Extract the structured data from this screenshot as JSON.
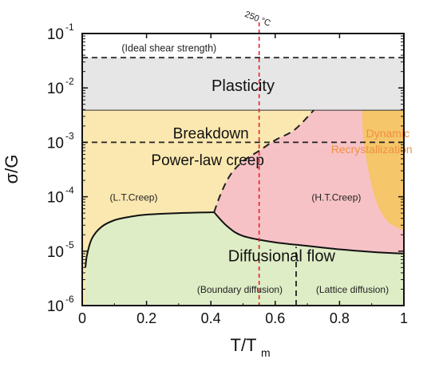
{
  "chart_data": {
    "type": "deformation-mechanism-map",
    "xlabel": "T/T",
    "xlabel_sub": "m",
    "ylabel": "σ/G",
    "xlim": [
      0,
      1
    ],
    "ylim_log10": [
      -6,
      -1
    ],
    "x_ticks": [
      {
        "v": 0,
        "label": "0"
      },
      {
        "v": 0.2,
        "label": "0.2"
      },
      {
        "v": 0.4,
        "label": "0.4"
      },
      {
        "v": 0.6,
        "label": "0.6"
      },
      {
        "v": 0.8,
        "label": "0.8"
      },
      {
        "v": 1,
        "label": "1"
      }
    ],
    "y_ticks": [
      {
        "e": -1,
        "label": "10",
        "exp": "-1"
      },
      {
        "e": -2,
        "label": "10",
        "exp": "-2"
      },
      {
        "e": -3,
        "label": "10",
        "exp": "-3"
      },
      {
        "e": -4,
        "label": "10",
        "exp": "-4"
      },
      {
        "e": -5,
        "label": "10",
        "exp": "-5"
      },
      {
        "e": -6,
        "label": "10",
        "exp": "-6"
      }
    ],
    "reference_line": {
      "x": 0.55,
      "label": "250 °C",
      "color": "#e8202a"
    },
    "ideal_shear_strength": {
      "y": 0.036,
      "label": "(Ideal shear strength)"
    },
    "breakdown_line_y": 0.001,
    "colors": {
      "plasticity": "#e6e6e6",
      "power_law": "#fbe8b0",
      "ht_creep": "#f7c2c6",
      "lattice": "#fdf8df",
      "diffusional": "#deedc6",
      "recrystallization": "#f5c66a",
      "recrystallization_label": "#f09040"
    },
    "regions": {
      "plasticity": {
        "label": "Plasticity",
        "x": 0.5,
        "y": 0.0105
      },
      "breakdown": {
        "label": "Breakdown",
        "x": 0.4,
        "y": 0.0014
      },
      "power_law": {
        "label": "Power-law creep",
        "x": 0.39,
        "y": 0.00045
      },
      "lt_creep": {
        "label": "(L.T.Creep)",
        "x": 0.16,
        "y": 9.5e-05
      },
      "ht_creep": {
        "label": "(H.T.Creep)",
        "x": 0.79,
        "y": 9.5e-05
      },
      "diffusional": {
        "label": "Diffusional flow",
        "x": 0.62,
        "y": 7.8e-06
      },
      "boundary": {
        "label": "(Boundary diffusion)",
        "x": 0.49,
        "y": 1.9e-06
      },
      "lattice": {
        "label": "(Lattice diffusion)",
        "x": 0.84,
        "y": 1.9e-06
      },
      "recrystallization": {
        "label_line1": "Dynamic",
        "label_line2": "Recrystallization",
        "x": 0.93,
        "y1": 0.0014,
        "y2": 0.00072
      }
    },
    "boundaries": {
      "plasticity_bottom": 0.0039,
      "lower_curve": [
        [
          0.01,
          5e-06
        ],
        [
          0.015,
          8.5e-06
        ],
        [
          0.03,
          1.7e-05
        ],
        [
          0.06,
          2.8e-05
        ],
        [
          0.1,
          3.7e-05
        ],
        [
          0.15,
          4.3e-05
        ],
        [
          0.2,
          4.7e-05
        ],
        [
          0.3,
          5e-05
        ],
        [
          0.41,
          5.2e-05
        ]
      ],
      "ht_diffusional_curve": [
        [
          0.41,
          5.2e-05
        ],
        [
          0.45,
          2.9e-05
        ],
        [
          0.5,
          1.9e-05
        ],
        [
          0.6,
          1.45e-05
        ],
        [
          0.7,
          1.25e-05
        ],
        [
          0.8,
          1.08e-05
        ],
        [
          0.9,
          9.7e-06
        ],
        [
          1.0,
          9e-06
        ]
      ],
      "ht_left_curve": [
        [
          0.41,
          5.2e-05
        ],
        [
          0.43,
          0.00011
        ],
        [
          0.46,
          0.00025
        ],
        [
          0.5,
          0.00045
        ],
        [
          0.55,
          0.0007
        ],
        [
          0.6,
          0.0011
        ],
        [
          0.66,
          0.0017
        ],
        [
          0.72,
          0.0039
        ]
      ],
      "diffusion_divider_x": 0.665,
      "recrystallization_outline": [
        [
          0.87,
          0.0039
        ],
        [
          0.874,
          0.0012
        ],
        [
          0.89,
          0.0003
        ],
        [
          0.915,
          8e-05
        ],
        [
          0.95,
          3.5e-05
        ],
        [
          1.0,
          2.4e-05
        ]
      ]
    }
  }
}
